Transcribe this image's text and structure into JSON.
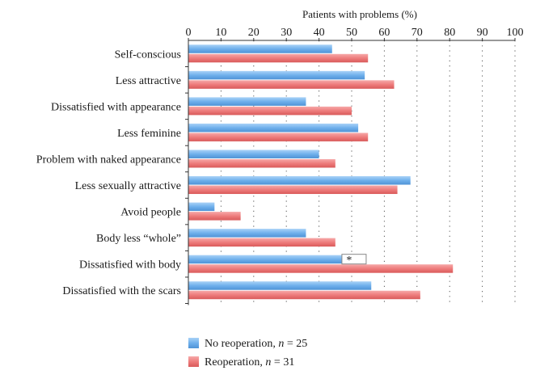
{
  "chart_data": {
    "type": "bar",
    "orientation": "horizontal",
    "title": "",
    "xlabel": "Patients with problems (%)",
    "ylabel": "",
    "xlim": [
      0,
      100
    ],
    "xticks": [
      "0",
      "10",
      "20",
      "30",
      "40",
      "50",
      "60",
      "70",
      "80",
      "90",
      "100"
    ],
    "grid": "vertical dotted",
    "categories": [
      "Self-conscious",
      "Less attractive",
      "Dissatisfied with appearance",
      "Less feminine",
      "Problem with naked appearance",
      "Less sexually attractive",
      "Avoid people",
      "Body less “whole”",
      "Dissatisfied with body",
      "Dissatisfied with the scars"
    ],
    "series": [
      {
        "name": "No reoperation",
        "n_label": "n",
        "n_value": "= 25",
        "color": "#6fb0ec",
        "values": [
          44,
          54,
          36,
          52,
          40,
          68,
          8,
          36,
          48,
          56
        ]
      },
      {
        "name": "Reoperation",
        "n_label": "n",
        "n_value": "= 31",
        "color": "#ee7c7c",
        "values": [
          55,
          63,
          50,
          55,
          45,
          64,
          16,
          45,
          81,
          71
        ]
      }
    ],
    "annotations": [
      {
        "text": "*",
        "category": "Dissatisfied with body"
      }
    ],
    "legend_position": "bottom-left"
  }
}
